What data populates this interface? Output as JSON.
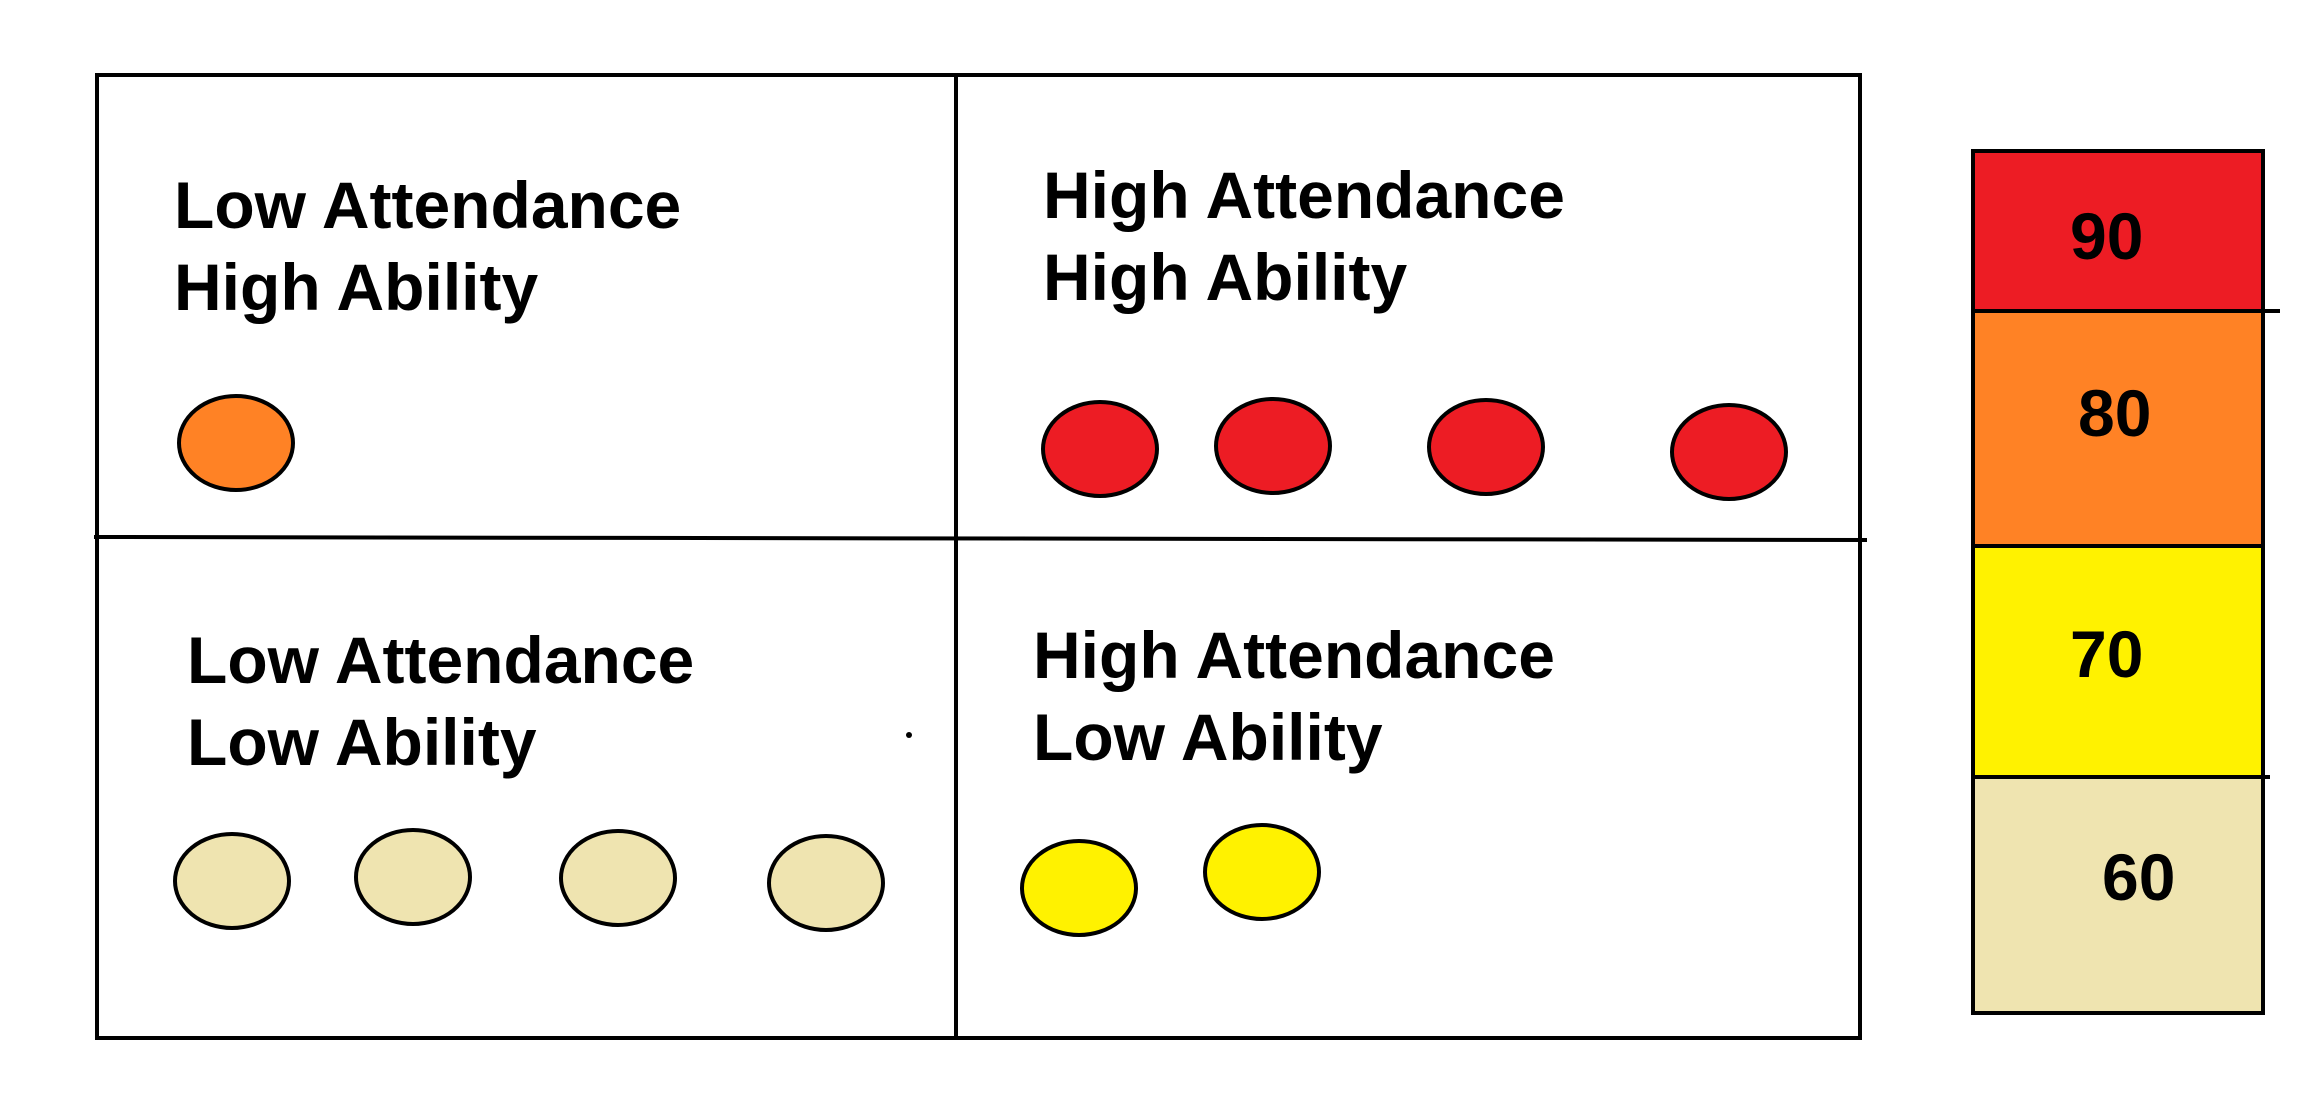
{
  "quadrants": [
    {
      "id": "low-attendance-high-ability",
      "line1": "Low Attendance",
      "line2": "High Ability",
      "dot_color": "#FF8225",
      "count": 1
    },
    {
      "id": "high-attendance-high-ability",
      "line1": "High Attendance",
      "line2": "High Ability",
      "dot_color": "#ED1C24",
      "count": 4
    },
    {
      "id": "low-attendance-low-ability",
      "line1": "Low Attendance",
      "line2": "Low Ability",
      "dot_color": "#EFE4B0",
      "count": 4
    },
    {
      "id": "high-attendance-low-ability",
      "line1": "High Attendance",
      "line2": "Low Ability",
      "dot_color": "#FFF200",
      "count": 2
    }
  ],
  "legend": [
    {
      "label": "90",
      "color": "#ED1C24"
    },
    {
      "label": "80",
      "color": "#FF8225"
    },
    {
      "label": "70",
      "color": "#FFF200"
    },
    {
      "label": "60",
      "color": "#EFE4B0"
    }
  ]
}
